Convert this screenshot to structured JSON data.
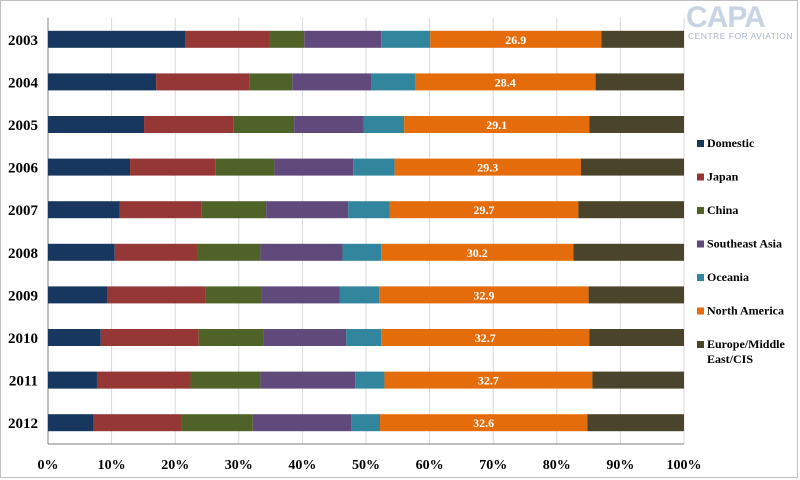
{
  "logo": {
    "name": "CAPA",
    "tagline": "CENTRE FOR AVIATION"
  },
  "chart_data": {
    "type": "bar",
    "orientation": "horizontal",
    "stacked": "percent",
    "title": "",
    "xlabel": "",
    "ylabel": "",
    "xlim": [
      0,
      100
    ],
    "x_ticks": [
      "0%",
      "10%",
      "20%",
      "30%",
      "40%",
      "50%",
      "60%",
      "70%",
      "80%",
      "90%",
      "100%"
    ],
    "categories": [
      "2003",
      "2004",
      "2005",
      "2006",
      "2007",
      "2008",
      "2009",
      "2010",
      "2011",
      "2012"
    ],
    "legend_position": "right",
    "grid": true,
    "series": [
      {
        "name": "Domestic",
        "color": "#17375e",
        "values": [
          21.6,
          17.0,
          15.1,
          12.9,
          11.3,
          10.5,
          9.4,
          8.3,
          7.7,
          7.2
        ]
      },
      {
        "name": "Japan",
        "color": "#953735",
        "values": [
          13.3,
          14.7,
          14.1,
          13.4,
          12.8,
          13.0,
          15.3,
          15.4,
          14.7,
          13.8
        ]
      },
      {
        "name": "China",
        "color": "#4f6228",
        "values": [
          5.4,
          6.7,
          9.5,
          9.3,
          10.2,
          9.9,
          8.8,
          10.2,
          11.0,
          11.2
        ]
      },
      {
        "name": "Southeast Asia",
        "color": "#604a7b",
        "values": [
          12.1,
          12.5,
          10.9,
          12.4,
          12.9,
          12.9,
          12.4,
          13.0,
          14.9,
          15.5
        ]
      },
      {
        "name": "Oceania",
        "color": "#31859c",
        "values": [
          7.7,
          6.8,
          6.4,
          6.5,
          6.5,
          6.1,
          6.2,
          5.5,
          4.6,
          4.5
        ]
      },
      {
        "name": "North America",
        "color": "#e46c0a",
        "values": [
          26.9,
          28.4,
          29.1,
          29.3,
          29.7,
          30.2,
          32.9,
          32.7,
          32.7,
          32.6
        ]
      },
      {
        "name": "Europe/Middle East/CIS",
        "color": "#4a452a",
        "values": [
          13.0,
          13.9,
          14.9,
          16.2,
          16.6,
          17.4,
          15.0,
          14.9,
          14.4,
          15.2
        ]
      }
    ],
    "data_labels": {
      "series": "North America",
      "values": [
        "26.9",
        "28.4",
        "29.1",
        "29.3",
        "29.7",
        "30.2",
        "32.9",
        "32.7",
        "32.7",
        "32.6"
      ]
    }
  }
}
